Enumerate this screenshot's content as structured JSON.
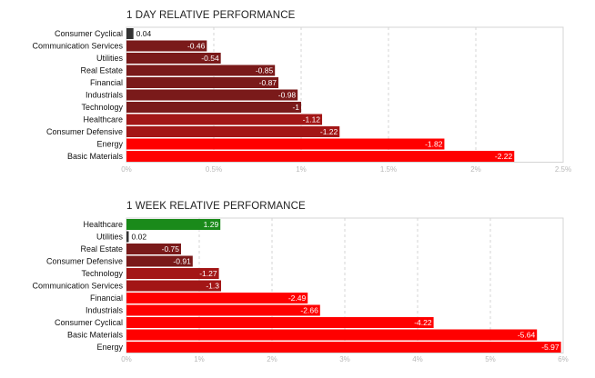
{
  "chart_data": [
    {
      "type": "bar",
      "orientation": "horizontal",
      "title": "1 DAY RELATIVE PERFORMANCE",
      "categories": [
        "Consumer Cyclical",
        "Communication Services",
        "Utilities",
        "Real Estate",
        "Financial",
        "Industrials",
        "Technology",
        "Healthcare",
        "Consumer Defensive",
        "Energy",
        "Basic Materials"
      ],
      "values": [
        0.04,
        -0.46,
        -0.54,
        -0.85,
        -0.87,
        -0.98,
        -1,
        -1.12,
        -1.22,
        -1.82,
        -2.22
      ],
      "value_labels": [
        "0.04",
        "-0.46",
        "-0.54",
        "-0.85",
        "-0.87",
        "-0.98",
        "-1",
        "-1.12",
        "-1.22",
        "-1.82",
        "-2.22"
      ],
      "x_ticks": [
        "0%",
        "0.5%",
        "1%",
        "1.5%",
        "2%",
        "2.5%"
      ],
      "xlim": [
        0,
        2.5
      ],
      "grid": true,
      "colors": {
        "positive_small": "#333333",
        "negative_dark": "#7a1a1a",
        "negative_mid": "#a31616",
        "negative_bright": "#ff0000"
      }
    },
    {
      "type": "bar",
      "orientation": "horizontal",
      "title": "1 WEEK RELATIVE PERFORMANCE",
      "categories": [
        "Healthcare",
        "Utilities",
        "Real Estate",
        "Consumer Defensive",
        "Technology",
        "Communication Services",
        "Financial",
        "Industrials",
        "Consumer Cyclical",
        "Basic Materials",
        "Energy"
      ],
      "values": [
        1.29,
        0.02,
        -0.75,
        -0.91,
        -1.27,
        -1.3,
        -2.49,
        -2.66,
        -4.22,
        -5.64,
        -5.97
      ],
      "value_labels": [
        "1.29",
        "0.02",
        "-0.75",
        "-0.91",
        "-1.27",
        "-1.3",
        "-2.49",
        "-2.66",
        "-4.22",
        "-5.64",
        "-5.97"
      ],
      "x_ticks": [
        "0%",
        "1%",
        "2%",
        "3%",
        "4%",
        "5%",
        "6%"
      ],
      "xlim": [
        0,
        6
      ],
      "grid": true,
      "colors": {
        "positive": "#1a8a1a",
        "positive_small": "#333333",
        "negative_dark": "#7a1a1a",
        "negative_mid": "#a31616",
        "negative_bright": "#ff0000"
      }
    }
  ]
}
